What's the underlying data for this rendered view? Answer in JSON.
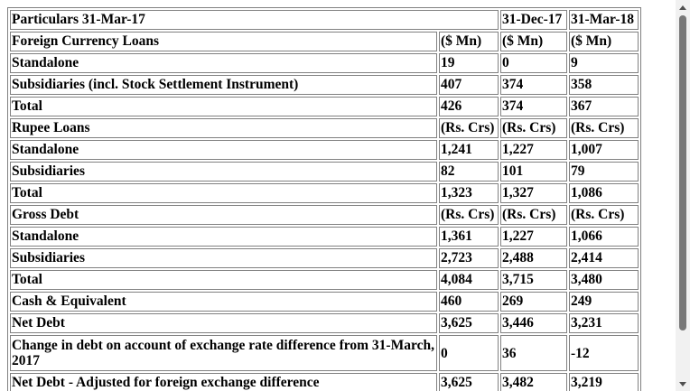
{
  "table": {
    "header": {
      "particulars": "Particulars 31-Mar-17",
      "col_dec17": "31-Dec-17",
      "col_mar18": "31-Mar-18"
    },
    "rows": [
      {
        "label": "Foreign Currency Loans",
        "v1": "($ Mn)",
        "v2": "($ Mn)",
        "v3": "($ Mn)"
      },
      {
        "label": "Standalone",
        "v1": "19",
        "v2": "0",
        "v3": "9"
      },
      {
        "label": "Subsidiaries (incl. Stock Settlement Instrument)",
        "v1": "407",
        "v2": "374",
        "v3": "358"
      },
      {
        "label": "Total",
        "v1": "426",
        "v2": "374",
        "v3": "367"
      },
      {
        "label": "Rupee Loans",
        "v1": "(Rs. Crs)",
        "v2": "(Rs. Crs)",
        "v3": "(Rs. Crs)"
      },
      {
        "label": "Standalone",
        "v1": "1,241",
        "v2": "1,227",
        "v3": "1,007"
      },
      {
        "label": "Subsidiaries",
        "v1": "82",
        "v2": "101",
        "v3": "79"
      },
      {
        "label": "Total",
        "v1": "1,323",
        "v2": "1,327",
        "v3": "1,086"
      },
      {
        "label": "Gross Debt",
        "v1": "(Rs. Crs)",
        "v2": "(Rs. Crs)",
        "v3": "(Rs. Crs)"
      },
      {
        "label": "Standalone",
        "v1": "1,361",
        "v2": "1,227",
        "v3": "1,066"
      },
      {
        "label": "Subsidiaries",
        "v1": "2,723",
        "v2": "2,488",
        "v3": "2,414"
      },
      {
        "label": "Total",
        "v1": "4,084",
        "v2": "3,715",
        "v3": "3,480"
      },
      {
        "label": "Cash & Equivalent",
        "v1": "460",
        "v2": "269",
        "v3": "249"
      },
      {
        "label": "Net Debt",
        "v1": "3,625",
        "v2": "3,446",
        "v3": "3,231"
      },
      {
        "label": "Change in debt on account of exchange rate difference from 31-March, 2017",
        "v1": "0",
        "v2": "36",
        "v3": "-12"
      },
      {
        "label": "Net Debt - Adjusted for foreign exchange difference",
        "v1": "3,625",
        "v2": "3,482",
        "v3": "3,219"
      }
    ]
  },
  "scrollbar": {
    "up_icon": "triangle-up",
    "down_icon": "triangle-down"
  }
}
